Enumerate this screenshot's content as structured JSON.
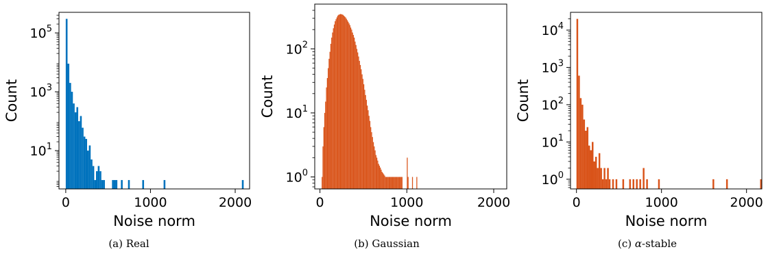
{
  "chart_data": [
    {
      "type": "bar",
      "xlabel": "Noise norm",
      "ylabel": "Count",
      "caption": {
        "prefix": "(a)",
        "label": "Real"
      },
      "color": "#0072bd",
      "yscale": "log",
      "xlim": [
        -80,
        2170
      ],
      "ylim": [
        0.5,
        500000
      ],
      "xticks": [
        {
          "value": 0,
          "label": "0"
        },
        {
          "value": 1000,
          "label": "1000"
        },
        {
          "value": 2000,
          "label": "2000"
        }
      ],
      "yticks": [
        {
          "value": 10,
          "base": "10",
          "exp": "1"
        },
        {
          "value": 1000,
          "base": "10",
          "exp": "3"
        },
        {
          "value": 100000,
          "base": "10",
          "exp": "5"
        }
      ],
      "bin_width": 21,
      "bins": [
        [
          0,
          300000
        ],
        [
          21,
          9000
        ],
        [
          42,
          2000
        ],
        [
          63,
          1000
        ],
        [
          84,
          400
        ],
        [
          105,
          200
        ],
        [
          126,
          300
        ],
        [
          147,
          100
        ],
        [
          168,
          150
        ],
        [
          189,
          60
        ],
        [
          210,
          30
        ],
        [
          231,
          25
        ],
        [
          252,
          10
        ],
        [
          273,
          15
        ],
        [
          294,
          5
        ],
        [
          315,
          3
        ],
        [
          336,
          1
        ],
        [
          357,
          2
        ],
        [
          378,
          3
        ],
        [
          399,
          2
        ],
        [
          420,
          1
        ],
        [
          441,
          1
        ],
        [
          546,
          1
        ],
        [
          567,
          1
        ],
        [
          588,
          1
        ],
        [
          651,
          1
        ],
        [
          735,
          1
        ],
        [
          903,
          1
        ],
        [
          1155,
          1
        ],
        [
          2079,
          1
        ]
      ]
    },
    {
      "type": "bar",
      "xlabel": "Noise norm",
      "ylabel": "Count",
      "caption": {
        "prefix": "(b)",
        "label": "Gaussian"
      },
      "color": "#d95319",
      "yscale": "log",
      "xlim": [
        -60,
        2150
      ],
      "ylim": [
        0.65,
        500
      ],
      "xticks": [
        {
          "value": 0,
          "label": "0"
        },
        {
          "value": 1000,
          "label": "1000"
        },
        {
          "value": 2000,
          "label": "2000"
        }
      ],
      "yticks": [
        {
          "value": 1,
          "base": "10",
          "exp": "0"
        },
        {
          "value": 10,
          "base": "10",
          "exp": "1"
        },
        {
          "value": 100,
          "base": "10",
          "exp": "2"
        }
      ],
      "bin_width": 10,
      "bins": [
        [
          20,
          1
        ],
        [
          30,
          3
        ],
        [
          40,
          6
        ],
        [
          50,
          10
        ],
        [
          60,
          15
        ],
        [
          70,
          25
        ],
        [
          80,
          35
        ],
        [
          90,
          50
        ],
        [
          100,
          70
        ],
        [
          110,
          90
        ],
        [
          120,
          120
        ],
        [
          130,
          150
        ],
        [
          140,
          180
        ],
        [
          150,
          210
        ],
        [
          160,
          240
        ],
        [
          170,
          270
        ],
        [
          180,
          290
        ],
        [
          190,
          310
        ],
        [
          200,
          330
        ],
        [
          210,
          340
        ],
        [
          220,
          345
        ],
        [
          230,
          350
        ],
        [
          240,
          348
        ],
        [
          250,
          345
        ],
        [
          260,
          340
        ],
        [
          270,
          330
        ],
        [
          280,
          320
        ],
        [
          290,
          310
        ],
        [
          300,
          295
        ],
        [
          310,
          280
        ],
        [
          320,
          265
        ],
        [
          330,
          250
        ],
        [
          340,
          235
        ],
        [
          350,
          215
        ],
        [
          360,
          200
        ],
        [
          370,
          180
        ],
        [
          380,
          165
        ],
        [
          390,
          150
        ],
        [
          400,
          130
        ],
        [
          410,
          115
        ],
        [
          420,
          100
        ],
        [
          430,
          88
        ],
        [
          440,
          76
        ],
        [
          450,
          65
        ],
        [
          460,
          56
        ],
        [
          470,
          48
        ],
        [
          480,
          40
        ],
        [
          490,
          34
        ],
        [
          500,
          28
        ],
        [
          510,
          23
        ],
        [
          520,
          19
        ],
        [
          530,
          16
        ],
        [
          540,
          13
        ],
        [
          550,
          11
        ],
        [
          560,
          9
        ],
        [
          570,
          7.5
        ],
        [
          580,
          6
        ],
        [
          590,
          5
        ],
        [
          600,
          4.2
        ],
        [
          610,
          3.5
        ],
        [
          620,
          3
        ],
        [
          630,
          2.6
        ],
        [
          640,
          2.2
        ],
        [
          650,
          2
        ],
        [
          660,
          1.8
        ],
        [
          670,
          1.6
        ],
        [
          680,
          1.5
        ],
        [
          690,
          1.4
        ],
        [
          700,
          1.3
        ],
        [
          710,
          1.2
        ],
        [
          720,
          1.15
        ],
        [
          730,
          1.1
        ],
        [
          740,
          1.05
        ],
        [
          750,
          1
        ],
        [
          760,
          1
        ],
        [
          770,
          1
        ],
        [
          780,
          1
        ],
        [
          790,
          1
        ],
        [
          800,
          1
        ],
        [
          810,
          1
        ],
        [
          820,
          1
        ],
        [
          830,
          1
        ],
        [
          840,
          1
        ],
        [
          850,
          1
        ],
        [
          860,
          1
        ],
        [
          870,
          1
        ],
        [
          880,
          1
        ],
        [
          890,
          1
        ],
        [
          900,
          1
        ],
        [
          910,
          1
        ],
        [
          920,
          1
        ],
        [
          930,
          1
        ],
        [
          940,
          1
        ],
        [
          1000,
          2
        ],
        [
          1010,
          1
        ],
        [
          1060,
          1
        ],
        [
          1110,
          1
        ]
      ]
    },
    {
      "type": "bar",
      "xlabel": "Noise norm",
      "ylabel": "Count",
      "caption": {
        "prefix": "(c)",
        "symbol": "α",
        "label": "-stable"
      },
      "color": "#d95319",
      "yscale": "log",
      "xlim": [
        -70,
        2180
      ],
      "ylim": [
        0.55,
        30000
      ],
      "xticks": [
        {
          "value": 0,
          "label": "0"
        },
        {
          "value": 1000,
          "label": "1000"
        },
        {
          "value": 2000,
          "label": "2000"
        }
      ],
      "yticks": [
        {
          "value": 1,
          "base": "10",
          "exp": "0"
        },
        {
          "value": 10,
          "base": "10",
          "exp": "1"
        },
        {
          "value": 100,
          "base": "10",
          "exp": "2"
        },
        {
          "value": 1000,
          "base": "10",
          "exp": "3"
        },
        {
          "value": 10000,
          "base": "10",
          "exp": "4"
        }
      ],
      "bin_width": 20,
      "bins": [
        [
          0,
          20000
        ],
        [
          20,
          600
        ],
        [
          40,
          150
        ],
        [
          60,
          100
        ],
        [
          80,
          40
        ],
        [
          100,
          20
        ],
        [
          120,
          25
        ],
        [
          140,
          8
        ],
        [
          160,
          6
        ],
        [
          180,
          10
        ],
        [
          200,
          3
        ],
        [
          220,
          4
        ],
        [
          240,
          2
        ],
        [
          260,
          5
        ],
        [
          280,
          2
        ],
        [
          300,
          1
        ],
        [
          320,
          2
        ],
        [
          340,
          1
        ],
        [
          360,
          2
        ],
        [
          380,
          1
        ],
        [
          420,
          1
        ],
        [
          460,
          1
        ],
        [
          540,
          1
        ],
        [
          620,
          1
        ],
        [
          660,
          1
        ],
        [
          700,
          1
        ],
        [
          740,
          1
        ],
        [
          780,
          2
        ],
        [
          820,
          1
        ],
        [
          960,
          1
        ],
        [
          1600,
          1
        ],
        [
          1760,
          1
        ],
        [
          2160,
          1
        ]
      ]
    }
  ]
}
